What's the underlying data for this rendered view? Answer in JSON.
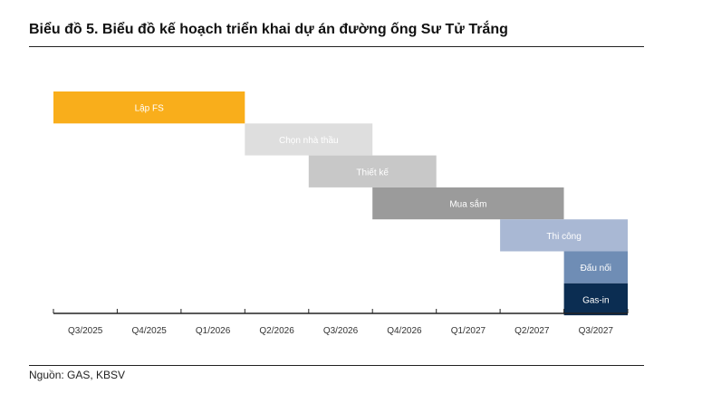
{
  "title": "Biểu đồ 5. Biểu đồ kế hoạch triển khai dự án đường ống Sư Tử Trắng",
  "source": "Nguồn: GAS, KBSV",
  "chart_data": {
    "type": "bar",
    "orientation": "horizontal-gantt",
    "title": "",
    "xlabel": "",
    "ylabel": "",
    "periods": [
      "Q3/2025",
      "Q4/2025",
      "Q1/2026",
      "Q2/2026",
      "Q3/2026",
      "Q4/2026",
      "Q1/2027",
      "Q2/2027",
      "Q3/2027"
    ],
    "tasks": [
      {
        "label": "Lập FS",
        "start": 0,
        "end": 3,
        "color": "#F9AE1B",
        "text_color": "#ffffff"
      },
      {
        "label": "Chọn nhà thầu",
        "start": 3,
        "end": 5,
        "color": "#DEDEDE",
        "text_color": "#ffffff"
      },
      {
        "label": "Thiết kế",
        "start": 4,
        "end": 6,
        "color": "#C8C8C8",
        "text_color": "#ffffff"
      },
      {
        "label": "Mua sắm",
        "start": 5,
        "end": 8,
        "color": "#9B9B9B",
        "text_color": "#ffffff"
      },
      {
        "label": "Thi công",
        "start": 7,
        "end": 9,
        "color": "#A9B8D4",
        "text_color": "#ffffff"
      },
      {
        "label": "Đấu nối",
        "start": 8,
        "end": 9,
        "color": "#6F8DB5",
        "text_color": "#ffffff"
      },
      {
        "label": "Gas-in",
        "start": 8,
        "end": 9,
        "color": "#0B2D52",
        "text_color": "#ffffff"
      }
    ],
    "grid": false,
    "legend": "none"
  }
}
